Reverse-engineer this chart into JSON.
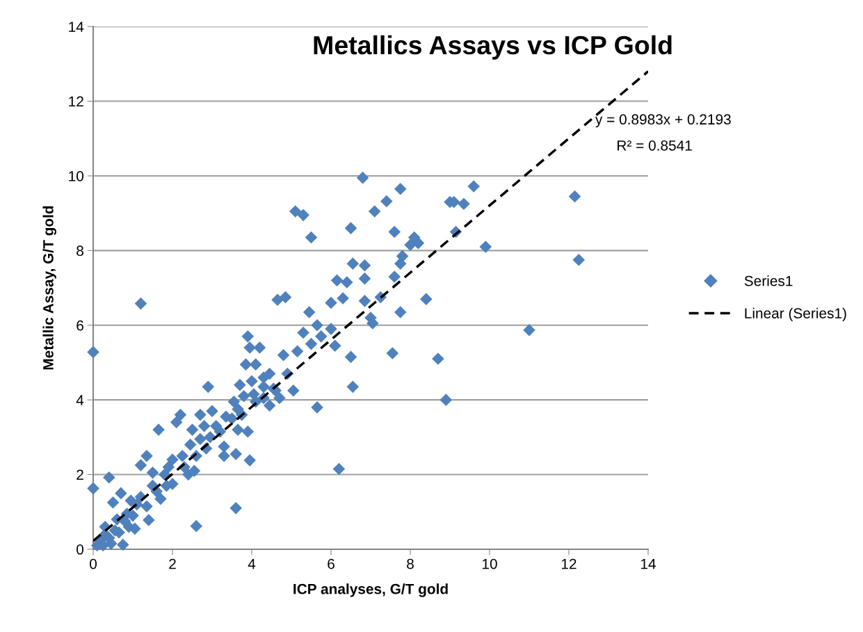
{
  "chart_data": {
    "type": "scatter",
    "title": "Metallics Assays vs ICP Gold",
    "xlabel": "ICP analyses, G/T gold",
    "ylabel": "Metallic Assay, G/T gold",
    "xlim": [
      0,
      14
    ],
    "ylim": [
      0,
      14
    ],
    "xticks": [
      0,
      2,
      4,
      6,
      8,
      10,
      12,
      14
    ],
    "yticks": [
      0,
      2,
      4,
      6,
      8,
      10,
      12,
      14
    ],
    "grid": "y",
    "legend": "right",
    "annotations": [
      "y = 0.8983x + 0.2193",
      "R² = 0.8541"
    ],
    "series": [
      {
        "name": "Series1",
        "color": "#4f81bd",
        "marker": "diamond",
        "x": [
          0,
          0,
          0.4,
          1.2,
          3.6,
          2.6,
          6.2,
          0.75,
          5.1,
          5.3,
          5.5,
          6.8,
          7.4,
          7.1,
          7.75,
          9.6,
          9.0,
          9.1,
          9.35,
          12.15,
          12.25,
          9.9,
          9.15,
          8.1,
          8.0,
          8.2,
          7.8,
          7.75,
          7.6,
          6.5,
          6.55,
          6.85,
          6.85,
          6.4,
          6.15,
          6.3,
          6.85,
          7.25,
          7.6,
          8.4,
          7.0,
          7.05,
          7.75,
          11.0,
          8.7,
          8.9,
          7.55,
          6.55,
          6.5,
          5.65,
          6.0,
          6.1,
          6.0,
          5.75,
          5.65,
          5.5,
          5.3,
          5.45,
          5.15,
          5.05,
          4.8,
          4.85,
          4.65,
          4.9,
          4.7,
          4.6,
          4.45,
          4.3,
          4.2,
          4.1,
          4.0,
          3.9,
          3.85,
          3.95,
          3.9,
          3.95,
          3.6,
          3.7,
          3.75,
          3.55,
          3.8,
          3.3,
          3.3,
          2.9,
          3.0,
          2.7,
          2.5,
          2.8,
          2.6,
          2.4,
          2.55,
          2.2,
          2.1,
          1.65,
          2.0,
          1.8,
          1.85,
          1.7,
          1.5,
          1.35,
          1.2,
          1.4,
          1.2,
          1.1,
          1.0,
          0.9,
          0.8,
          0.7,
          0.5,
          0.6,
          0.55,
          0.4,
          0.3,
          0.2,
          0.1,
          0.25,
          0.45,
          0.3,
          1.5,
          2.25,
          2.45,
          2.95,
          3.1,
          3.35,
          3.5,
          3.65,
          4.05,
          4.3,
          4.45,
          4.1,
          2.7,
          2.3,
          1.9,
          1.6,
          1.35,
          0.85,
          0.65,
          1.05,
          0.95,
          2.0,
          3.2,
          3.65,
          2.85,
          4.3,
          4.55
        ],
        "values": [
          5.28,
          1.63,
          1.92,
          6.58,
          1.1,
          0.62,
          2.15,
          0.12,
          9.05,
          8.95,
          8.35,
          9.95,
          9.32,
          9.05,
          9.65,
          9.72,
          9.3,
          9.3,
          9.25,
          9.45,
          7.75,
          8.1,
          8.5,
          8.35,
          8.15,
          8.2,
          7.85,
          7.65,
          8.5,
          8.6,
          7.65,
          7.6,
          7.25,
          7.15,
          7.2,
          6.72,
          6.65,
          6.75,
          7.3,
          6.7,
          6.2,
          6.05,
          6.35,
          5.87,
          5.1,
          4.0,
          5.25,
          4.35,
          5.15,
          3.8,
          6.6,
          5.45,
          5.9,
          5.7,
          6.0,
          5.5,
          5.8,
          6.35,
          5.3,
          4.25,
          5.2,
          6.75,
          6.68,
          4.7,
          4.05,
          4.25,
          3.85,
          4.6,
          5.4,
          4.95,
          4.5,
          5.7,
          4.95,
          5.4,
          3.15,
          2.38,
          2.55,
          4.4,
          3.6,
          3.95,
          4.1,
          2.5,
          2.75,
          4.35,
          3.7,
          3.6,
          3.2,
          3.3,
          2.5,
          2.0,
          2.1,
          3.6,
          3.4,
          3.2,
          2.4,
          2.0,
          1.7,
          1.35,
          1.7,
          2.5,
          2.25,
          0.78,
          1.4,
          1.2,
          0.9,
          0.6,
          0.75,
          1.5,
          1.25,
          0.8,
          0.5,
          0.3,
          0.4,
          0.25,
          0.1,
          0.1,
          0.15,
          0.6,
          2.05,
          2.5,
          2.8,
          3.0,
          3.3,
          3.55,
          3.5,
          3.75,
          4.15,
          4.35,
          4.7,
          3.95,
          2.95,
          2.2,
          2.2,
          1.55,
          1.15,
          0.95,
          0.45,
          0.55,
          1.3,
          1.75,
          3.15,
          3.2,
          2.7,
          4.05,
          4.3
        ]
      },
      {
        "name": "Linear (Series1)",
        "color": "#000000",
        "type": "line",
        "line_style": "dashed",
        "x": [
          0,
          14
        ],
        "values": [
          0.22,
          12.8
        ]
      }
    ]
  }
}
